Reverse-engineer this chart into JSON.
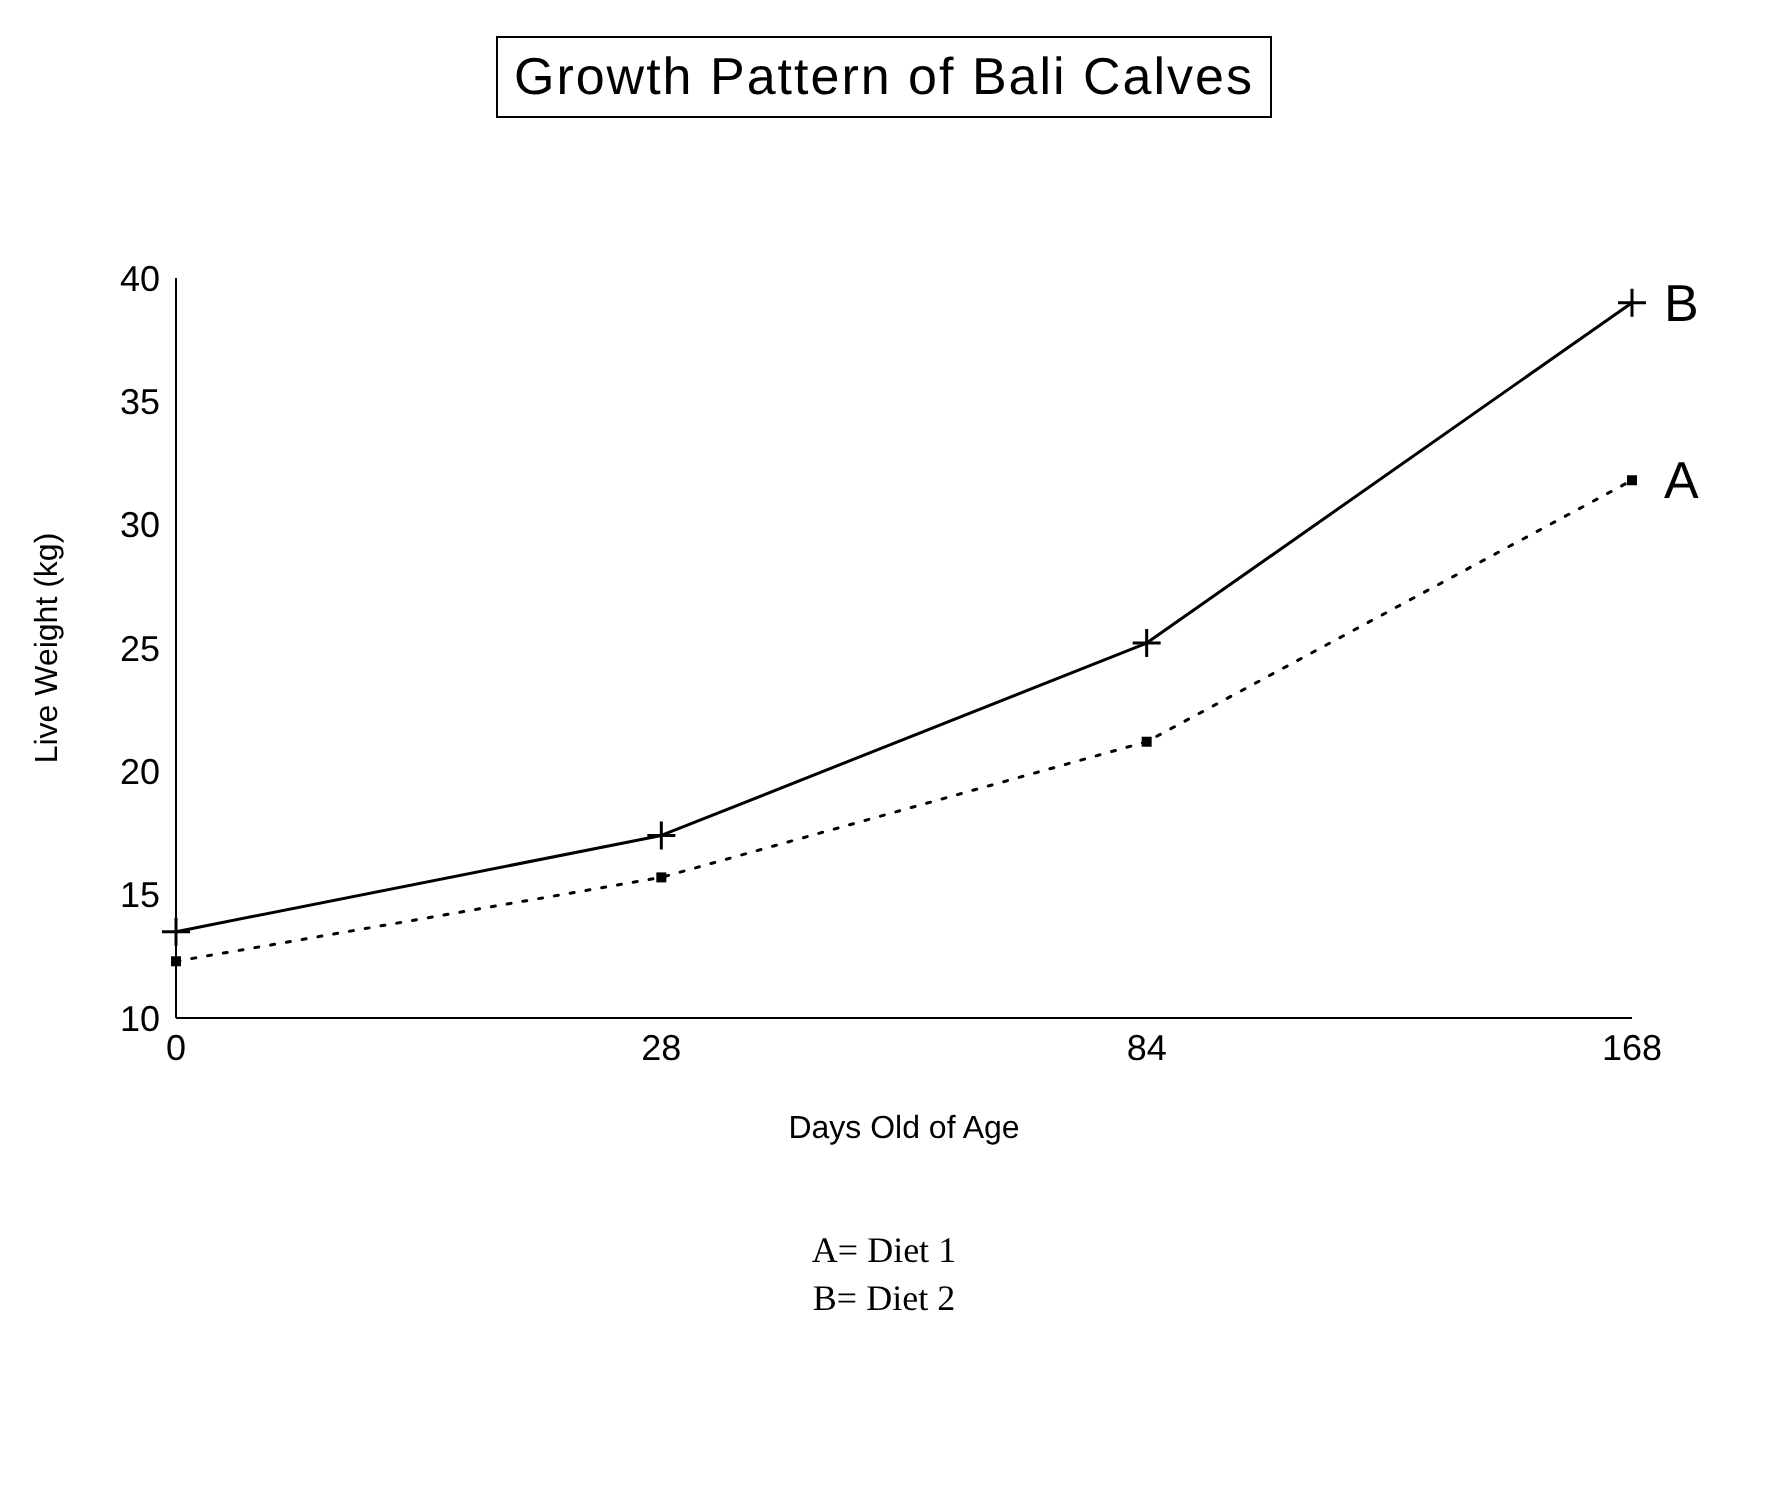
{
  "chart_data": {
    "type": "line",
    "title": "Growth Pattern of Bali Calves",
    "xlabel": "Days Old of Age",
    "ylabel": "Live Weight (kg)",
    "categories": [
      "0",
      "28",
      "84",
      "168"
    ],
    "series": [
      {
        "name": "B",
        "color": "#000000",
        "values": [
          13.5,
          17.4,
          25.2,
          39
        ],
        "marker": "cross",
        "line_style": "solid"
      },
      {
        "name": "A",
        "color": "#000000",
        "values": [
          12.3,
          15.7,
          21.2,
          31.8
        ],
        "marker": "square",
        "line_style": "dotted"
      }
    ],
    "ylim": [
      10,
      40
    ],
    "yticks": [
      10,
      15,
      20,
      25,
      30,
      35,
      40
    ],
    "grid": false,
    "legend": false,
    "annotations": [
      "A= Diet 1",
      "B= Diet 2"
    ]
  }
}
